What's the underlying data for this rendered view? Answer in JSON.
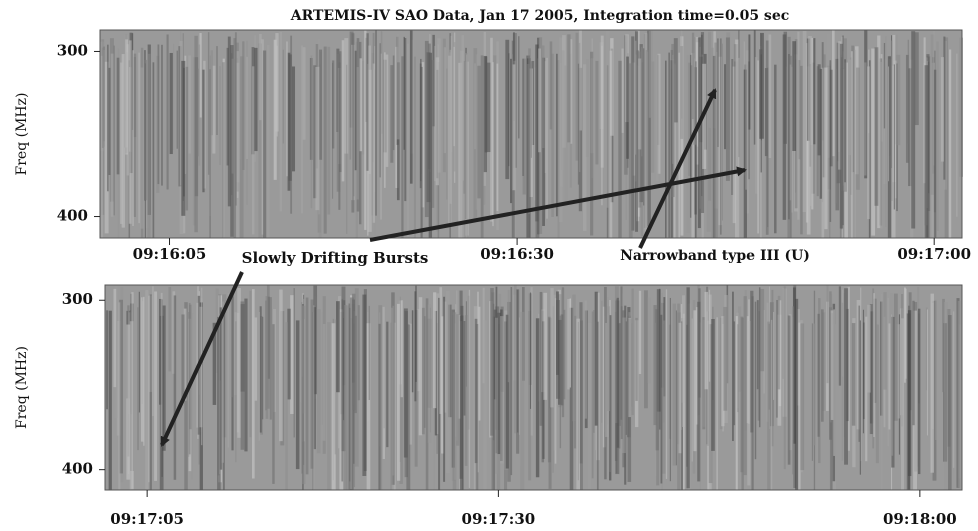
{
  "chart_data": [
    {
      "type": "spectrogram",
      "title": "ARTEMIS-IV SAO Data, Jan 17 2005, Integration time=0.05 sec",
      "ylabel": "Freq (MHz)",
      "ylim": [
        287,
        413
      ],
      "yticks": [
        300,
        400
      ],
      "xlim": [
        0,
        62
      ],
      "xticks": [
        {
          "value": 5,
          "label": "09:16:05"
        },
        {
          "value": 30,
          "label": "09:16:30"
        },
        {
          "value": 60,
          "label": "09:17:00"
        }
      ],
      "annotations": [
        "Slowly Drifting Bursts",
        "Narrowband type III (U)"
      ]
    },
    {
      "type": "spectrogram",
      "ylabel": "Freq (MHz)",
      "ylim": [
        291,
        412
      ],
      "yticks": [
        300,
        400
      ],
      "xlim": [
        2,
        63
      ],
      "xticks": [
        {
          "value": 5,
          "label": "09:17:05"
        },
        {
          "value": 30,
          "label": "09:17:30"
        },
        {
          "value": 60,
          "label": "09:18:00"
        }
      ]
    }
  ]
}
